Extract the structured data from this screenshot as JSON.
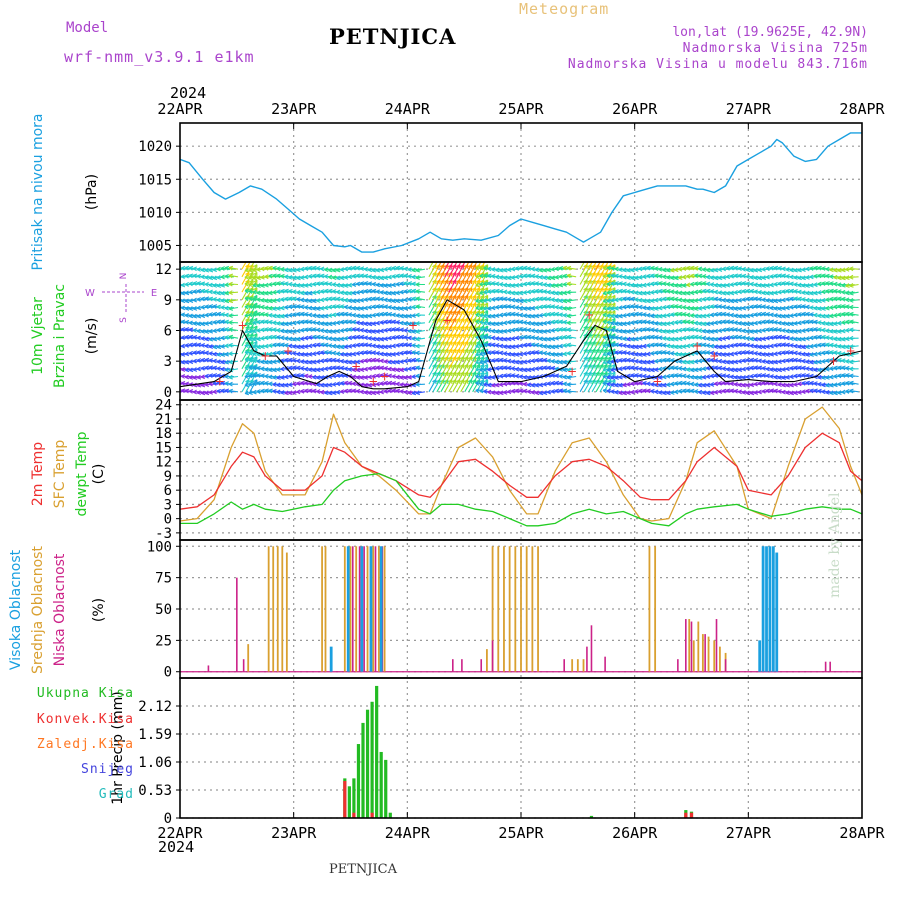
{
  "header": {
    "model_label": "Model",
    "model_name": "wrf-nmm_v3.9.1  e1km",
    "title": "PETNJICA",
    "meteogram_label": "Meteogram",
    "lonlat": "lon,lat (19.9625E, 42.9N)",
    "elevation": "Nadmorska Visina 725m",
    "model_elevation": "Nadmorska Visina u modelu 843.716m",
    "footer_title": "PETNJICA",
    "watermark": "made by Angel"
  },
  "time_axis": {
    "year": "2024",
    "labels": [
      "22APR",
      "23APR",
      "24APR",
      "25APR",
      "26APR",
      "27APR",
      "28APR"
    ]
  },
  "colors": {
    "pressure": "#1aa0e0",
    "temp2m": "#ee3030",
    "sfc_temp": "#d9a030",
    "dewpt": "#22cc22",
    "high_cloud": "#1aa0e0",
    "mid_cloud": "#d9a030",
    "low_cloud": "#cc2288",
    "total_precip": "#22bb22",
    "conv_precip": "#ee3030",
    "freezing_rain": "#ff7722",
    "snow": "#4444dd",
    "hail": "#22bbbb",
    "wind_speed": "#000000",
    "gust_marker": "#ee3030"
  },
  "chart_data": [
    {
      "type": "line",
      "panel": "pressure",
      "x_unit": "days since 22APR 00Z",
      "ylabel_colored": "Pritisak na nivou mora",
      "ylabel_unit": "(hPa)",
      "yticks": [
        1005,
        1010,
        1015,
        1020
      ],
      "ylim": [
        1002.5,
        1023.5
      ],
      "grid": true,
      "series": [
        {
          "x": [
            0,
            0.08,
            0.2,
            0.3,
            0.4,
            0.52,
            0.62,
            0.72,
            0.85,
            0.95,
            1.05,
            1.15,
            1.25,
            1.35,
            1.45,
            1.5,
            1.6,
            1.7,
            1.8,
            1.95,
            2.1,
            2.2,
            2.3,
            2.4,
            2.5,
            2.65,
            2.8,
            2.9,
            3.0,
            3.1,
            3.2,
            3.3,
            3.4,
            3.5,
            3.55,
            3.6,
            3.7,
            3.8,
            3.9,
            4.0,
            4.1,
            4.2,
            4.3,
            4.45,
            4.55,
            4.6,
            4.7,
            4.8,
            4.9,
            5.0,
            5.1,
            5.2,
            5.25,
            5.3,
            5.4,
            5.5,
            5.6,
            5.7,
            5.8,
            5.9,
            6.0
          ],
          "values": [
            1018,
            1017.5,
            1015,
            1013,
            1012,
            1013,
            1014,
            1013.5,
            1012,
            1010.5,
            1009,
            1008,
            1007,
            1005,
            1004.8,
            1005,
            1004,
            1004,
            1004.5,
            1005,
            1006,
            1007,
            1006,
            1005.8,
            1006,
            1005.8,
            1006.5,
            1008,
            1009,
            1008.5,
            1008,
            1007.5,
            1007,
            1006,
            1005.5,
            1006,
            1007,
            1010,
            1012.5,
            1013,
            1013.5,
            1014,
            1014,
            1014,
            1013.5,
            1013.5,
            1013,
            1014,
            1017,
            1018,
            1019,
            1020,
            1021,
            1020.5,
            1018.5,
            1017.7,
            1018,
            1020,
            1021,
            1022,
            1022
          ]
        }
      ]
    },
    {
      "type": "vector",
      "panel": "wind",
      "x_unit": "days since 22APR 00Z",
      "ylabel_colored": "10m Vjetar",
      "ylabel_colored_2": "Brzina i Pravac",
      "ylabel_unit": "(m/s)",
      "compass_labels": [
        "N",
        "W",
        "E",
        "S"
      ],
      "yticks": [
        0,
        3,
        6,
        9,
        12
      ],
      "ylim": [
        -0.8,
        12.7
      ],
      "grid": true,
      "series": [
        {
          "name": "speed",
          "x": [
            0,
            0.3,
            0.45,
            0.55,
            0.65,
            0.75,
            0.85,
            1.0,
            1.2,
            1.3,
            1.4,
            1.5,
            1.6,
            1.7,
            1.8,
            2.0,
            2.1,
            2.25,
            2.35,
            2.5,
            2.65,
            2.8,
            3.0,
            3.2,
            3.4,
            3.55,
            3.65,
            3.75,
            3.85,
            4.0,
            4.2,
            4.35,
            4.45,
            4.55,
            4.7,
            4.8,
            5.0,
            5.2,
            5.4,
            5.6,
            5.8,
            6.0
          ],
          "values": [
            0.5,
            1,
            2,
            6,
            4,
            3.5,
            3.5,
            1.5,
            0.8,
            1.5,
            2,
            1.5,
            0.5,
            0.3,
            0.3,
            0.5,
            1,
            7,
            9,
            8,
            5,
            1,
            1,
            1.5,
            2.5,
            5,
            6.5,
            6,
            2,
            1,
            1.5,
            3,
            3.5,
            4,
            2,
            1,
            1.2,
            1,
            1,
            1.5,
            3.5,
            4
          ]
        },
        {
          "name": "gusts",
          "x": [
            0.35,
            0.55,
            0.75,
            0.95,
            1.55,
            1.7,
            1.8,
            2.05,
            2.35,
            3.45,
            3.6,
            4.2,
            4.55,
            4.7,
            5.75,
            5.9
          ],
          "values": [
            1,
            6.5,
            3.5,
            4,
            2.5,
            1,
            1.5,
            6.5,
            7,
            2,
            7.5,
            1,
            4.5,
            3.5,
            3,
            4
          ]
        }
      ]
    },
    {
      "type": "line",
      "panel": "temperature",
      "x_unit": "days since 22APR 00Z",
      "ylabel_colored": "2m Temp",
      "ylabel_colored_2": "SFC Temp",
      "ylabel_colored_3": "dewpt Temp",
      "ylabel_unit": "(C)",
      "yticks": [
        -3,
        0,
        3,
        6,
        9,
        12,
        15,
        18,
        21,
        24
      ],
      "ylim": [
        -4.5,
        25
      ],
      "grid": true,
      "series": [
        {
          "name": "2m Temp",
          "x": [
            0,
            0.15,
            0.3,
            0.45,
            0.55,
            0.65,
            0.75,
            0.9,
            1.1,
            1.25,
            1.35,
            1.45,
            1.6,
            1.75,
            1.9,
            2.1,
            2.2,
            2.3,
            2.45,
            2.6,
            2.75,
            2.9,
            3.05,
            3.15,
            3.3,
            3.45,
            3.6,
            3.75,
            3.9,
            4.05,
            4.15,
            4.3,
            4.45,
            4.55,
            4.7,
            4.9,
            5.0,
            5.2,
            5.35,
            5.5,
            5.65,
            5.8,
            5.9,
            6.0
          ],
          "values": [
            2,
            2.5,
            5,
            11,
            14,
            13,
            9,
            6,
            6,
            9,
            15,
            14,
            11,
            9.5,
            8,
            5,
            4.5,
            7,
            12,
            12.5,
            10,
            7,
            4.5,
            4.5,
            9,
            12,
            12.5,
            11,
            8,
            4.5,
            4,
            4,
            8,
            12,
            15,
            11,
            6,
            5,
            9,
            15,
            18,
            16,
            10,
            8
          ]
        },
        {
          "name": "SFC Temp",
          "x": [
            0,
            0.15,
            0.3,
            0.45,
            0.55,
            0.65,
            0.75,
            0.9,
            1.1,
            1.25,
            1.35,
            1.45,
            1.6,
            1.75,
            1.9,
            2.1,
            2.2,
            2.3,
            2.45,
            2.6,
            2.75,
            2.9,
            3.05,
            3.15,
            3.3,
            3.45,
            3.6,
            3.75,
            3.9,
            4.05,
            4.15,
            4.3,
            4.45,
            4.55,
            4.7,
            4.9,
            5.0,
            5.2,
            5.35,
            5.5,
            5.65,
            5.8,
            5.9,
            6.0
          ],
          "values": [
            -0.5,
            0,
            4,
            15,
            20,
            18,
            10,
            5,
            5,
            12,
            22,
            16,
            11,
            9,
            6,
            1,
            1,
            7,
            15,
            17,
            13,
            6,
            1,
            1,
            10,
            16,
            17,
            12,
            5,
            0,
            -0.5,
            0,
            8,
            16,
            18.5,
            11,
            2,
            0,
            11,
            21,
            23.5,
            19,
            11,
            5
          ]
        },
        {
          "name": "dewpt Temp",
          "x": [
            0,
            0.15,
            0.3,
            0.45,
            0.55,
            0.65,
            0.75,
            0.9,
            1.1,
            1.25,
            1.35,
            1.45,
            1.6,
            1.75,
            1.9,
            2.1,
            2.2,
            2.3,
            2.45,
            2.6,
            2.75,
            2.9,
            3.05,
            3.15,
            3.3,
            3.45,
            3.6,
            3.75,
            3.9,
            4.05,
            4.15,
            4.3,
            4.45,
            4.55,
            4.7,
            4.9,
            5.0,
            5.2,
            5.35,
            5.5,
            5.65,
            5.8,
            5.9,
            6.0
          ],
          "values": [
            -1,
            -1,
            1,
            3.5,
            2,
            3,
            2,
            1.5,
            2.5,
            3,
            6,
            8,
            9,
            9.5,
            8,
            2,
            1,
            3,
            3,
            2,
            1.5,
            0,
            -1.5,
            -1.5,
            -1,
            1,
            2,
            1,
            1.5,
            0,
            -1,
            -1.5,
            1,
            2,
            2.5,
            3,
            2,
            0.5,
            1,
            2,
            2.5,
            2,
            2,
            1
          ]
        }
      ]
    },
    {
      "type": "bar",
      "panel": "cloud",
      "x_unit": "days since 22APR 00Z",
      "ylabel_colored": "Visoka Oblacnost",
      "ylabel_colored_2": "Srednja Oblacnost",
      "ylabel_colored_3": "Niska Oblacnost",
      "ylabel_unit": "(%)",
      "yticks": [
        0,
        25,
        50,
        75,
        100
      ],
      "ylim": [
        -5,
        105
      ],
      "grid": true,
      "series": [
        {
          "name": "Srednja Oblacnost",
          "x": [
            0.6,
            0.78,
            0.82,
            0.86,
            0.9,
            0.94,
            1.25,
            1.28,
            1.45,
            1.5,
            1.55,
            1.6,
            1.65,
            1.7,
            1.75,
            1.8,
            2.7,
            2.75,
            2.8,
            2.85,
            2.9,
            2.95,
            3.0,
            3.05,
            3.1,
            3.15,
            3.45,
            3.5,
            3.55,
            4.13,
            4.18,
            4.48,
            4.52,
            4.56,
            4.6,
            4.65,
            4.7,
            4.75,
            4.8
          ],
          "values": [
            22,
            100,
            100,
            100,
            100,
            95,
            100,
            100,
            100,
            100,
            100,
            100,
            100,
            100,
            100,
            100,
            18,
            100,
            100,
            100,
            100,
            100,
            100,
            100,
            100,
            100,
            10,
            10,
            10,
            100,
            100,
            42,
            25,
            40,
            30,
            28,
            25,
            20,
            15
          ]
        },
        {
          "name": "Niska Oblacnost",
          "x": [
            0.25,
            0.5,
            0.56,
            1.52,
            1.58,
            1.62,
            1.72,
            1.78,
            2.4,
            2.48,
            2.65,
            2.75,
            3.38,
            3.58,
            3.62,
            3.74,
            4.38,
            4.45,
            4.5,
            4.62,
            4.72,
            4.8,
            5.68,
            5.72
          ],
          "values": [
            5,
            75,
            10,
            100,
            100,
            100,
            100,
            100,
            10,
            10,
            10,
            25,
            10,
            20,
            37,
            12,
            10,
            42,
            40,
            30,
            42,
            10,
            8,
            8
          ]
        },
        {
          "name": "Visoka Oblacnost",
          "x": [
            1.33,
            1.48,
            1.6,
            1.68,
            1.77,
            5.1,
            5.13,
            5.16,
            5.19,
            5.22,
            5.25
          ],
          "values": [
            20,
            100,
            100,
            100,
            100,
            25,
            100,
            100,
            100,
            100,
            95
          ]
        }
      ]
    },
    {
      "type": "bar",
      "panel": "precip",
      "x_unit": "days since 22APR 00Z",
      "ylabel_unit": "1hr Precip (mm)",
      "legend": [
        "Ukupna Kisa",
        "Konvek.Kisa",
        "Zaledj.Kisa",
        "Snijeg",
        "Grad"
      ],
      "yticks": [
        0,
        0.53,
        1.06,
        1.59,
        2.12
      ],
      "ylim": [
        0,
        2.65
      ],
      "grid": true,
      "series": [
        {
          "name": "Ukupna Kisa",
          "x": [
            1.45,
            1.49,
            1.53,
            1.57,
            1.61,
            1.65,
            1.69,
            1.73,
            1.77,
            1.81,
            1.85,
            3.62,
            4.45,
            4.5
          ],
          "values": [
            0.75,
            0.6,
            0.75,
            1.4,
            1.8,
            2.05,
            2.2,
            2.5,
            1.25,
            1.1,
            0.1,
            0.04,
            0.15,
            0.12
          ]
        },
        {
          "name": "Konvek.Kisa",
          "x": [
            1.45,
            1.53,
            1.69,
            4.45,
            4.5
          ],
          "values": [
            0.7,
            0.1,
            0.1,
            0.1,
            0.1
          ]
        }
      ]
    }
  ]
}
